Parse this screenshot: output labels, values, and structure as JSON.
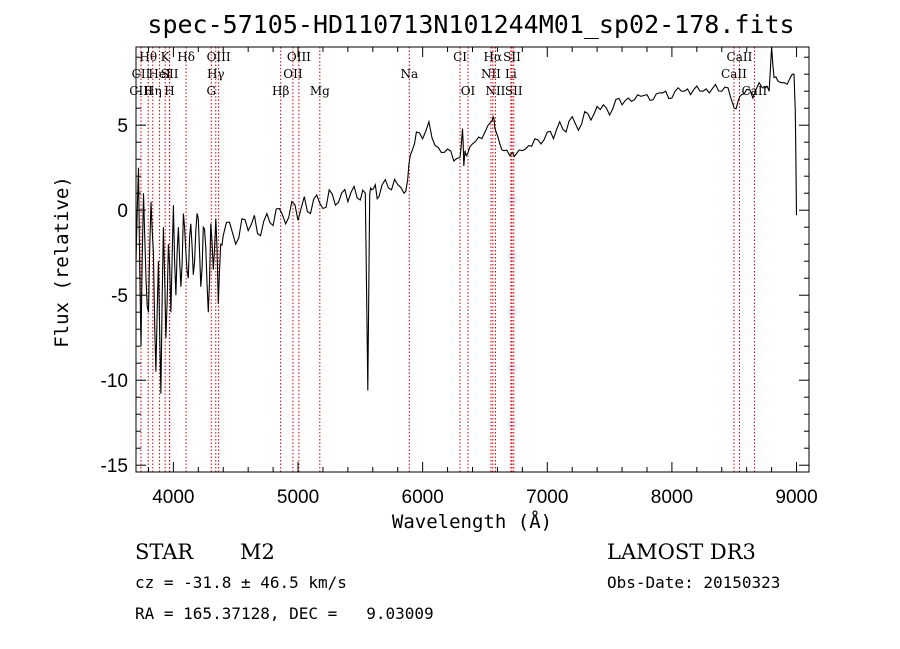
{
  "chart_data": {
    "type": "line",
    "title": "spec-57105-HD110713N101244M01_sp02-178.fits",
    "xlabel": "Wavelength (Å)",
    "ylabel": "Flux (relative)",
    "xlim": [
      3700,
      9100
    ],
    "ylim": [
      -15.4,
      9.6
    ],
    "xticks": [
      4000,
      5000,
      6000,
      7000,
      8000,
      9000
    ],
    "yticks": [
      -15,
      -10,
      -5,
      0,
      5
    ],
    "series": [
      {
        "name": "spectrum",
        "x": [
          3700,
          3720,
          3740,
          3760,
          3780,
          3800,
          3820,
          3840,
          3860,
          3880,
          3900,
          3920,
          3940,
          3960,
          3980,
          4000,
          4020,
          4040,
          4060,
          4080,
          4100,
          4120,
          4140,
          4160,
          4180,
          4200,
          4220,
          4240,
          4260,
          4280,
          4300,
          4320,
          4340,
          4360,
          4380,
          4400,
          4450,
          4500,
          4550,
          4600,
          4650,
          4700,
          4750,
          4800,
          4850,
          4900,
          4950,
          5000,
          5050,
          5100,
          5150,
          5200,
          5250,
          5300,
          5350,
          5400,
          5450,
          5500,
          5540,
          5560,
          5575,
          5590,
          5620,
          5650,
          5700,
          5750,
          5800,
          5850,
          5880,
          5900,
          5920,
          5950,
          6000,
          6050,
          6100,
          6150,
          6200,
          6250,
          6300,
          6320,
          6330,
          6340,
          6360,
          6400,
          6450,
          6500,
          6550,
          6565,
          6580,
          6620,
          6650,
          6700,
          6720,
          6750,
          6800,
          6850,
          6900,
          6950,
          7000,
          7050,
          7100,
          7150,
          7200,
          7250,
          7300,
          7350,
          7400,
          7450,
          7500,
          7550,
          7600,
          7650,
          7700,
          7750,
          7800,
          7850,
          7900,
          7950,
          8000,
          8050,
          8100,
          8150,
          8200,
          8250,
          8300,
          8350,
          8400,
          8450,
          8500,
          8530,
          8560,
          8600,
          8650,
          8700,
          8750,
          8780,
          8800,
          8820,
          8850,
          8900,
          8950,
          8980,
          8990,
          9000
        ],
        "y": [
          -3.0,
          2.5,
          -8.0,
          1.0,
          -4.0,
          -6.0,
          0.5,
          -2.5,
          -9.5,
          -3.0,
          -10.8,
          -1.0,
          -7.5,
          -2.0,
          -6.0,
          0.3,
          -5.0,
          -1.0,
          -4.5,
          -0.2,
          -2.5,
          -4.0,
          -0.8,
          -3.8,
          -1.2,
          -0.5,
          -4.5,
          -1.0,
          -2.2,
          -6.0,
          -0.8,
          -3.5,
          -0.5,
          -5.5,
          -2.0,
          -1.5,
          -0.7,
          -2.0,
          -0.5,
          -1.2,
          -0.3,
          -1.5,
          -0.2,
          -0.9,
          0.1,
          -0.8,
          0.5,
          -0.6,
          0.8,
          -0.2,
          0.9,
          0.1,
          1.2,
          0.3,
          1.0,
          0.5,
          1.4,
          0.6,
          1.0,
          -10.6,
          0.9,
          1.2,
          1.5,
          0.8,
          1.8,
          1.2,
          1.5,
          1.0,
          1.8,
          3.2,
          3.6,
          4.6,
          4.2,
          5.2,
          3.8,
          3.4,
          3.6,
          2.9,
          3.1,
          4.8,
          2.6,
          3.5,
          3.3,
          3.9,
          4.3,
          4.6,
          5.2,
          5.5,
          4.8,
          3.9,
          3.5,
          3.2,
          3.4,
          3.3,
          3.5,
          3.8,
          4.2,
          3.9,
          4.6,
          4.2,
          5.2,
          4.6,
          5.5,
          4.7,
          5.8,
          5.3,
          6.1,
          6.2,
          5.6,
          6.5,
          6.2,
          6.6,
          6.5,
          6.7,
          6.8,
          6.5,
          6.9,
          7.0,
          6.6,
          7.2,
          7.0,
          6.8,
          7.3,
          7.0,
          6.9,
          7.4,
          7.0,
          7.2,
          6.0,
          6.4,
          6.8,
          7.1,
          6.6,
          7.5,
          7.2,
          7.0,
          9.6,
          7.8,
          7.6,
          7.5,
          7.8,
          8.0,
          5.8,
          -0.3
        ]
      }
    ],
    "spectral_lines": [
      {
        "label": "Hθ",
        "x": 3798,
        "row": 0
      },
      {
        "label": "CII",
        "x": 3740,
        "row": 1
      },
      {
        "label": "CIII",
        "x": 3740,
        "row": 2
      },
      {
        "label": "K",
        "x": 3934,
        "row": 0
      },
      {
        "label": "HeI",
        "x": 3889,
        "row": 1
      },
      {
        "label": "Hη",
        "x": 3835,
        "row": 2
      },
      {
        "label": "SII",
        "x": 3970,
        "row": 1
      },
      {
        "label": "H",
        "x": 3969,
        "row": 2
      },
      {
        "label": "Hδ",
        "x": 4102,
        "row": 0
      },
      {
        "label": "OIII",
        "x": 4363,
        "row": 0
      },
      {
        "label": "Hγ",
        "x": 4340,
        "row": 1
      },
      {
        "label": "G",
        "x": 4304,
        "row": 2
      },
      {
        "label": "Hβ",
        "x": 4861,
        "row": 2
      },
      {
        "label": "OIII",
        "x": 5007,
        "row": 0
      },
      {
        "label": "OII",
        "x": 4959,
        "row": 1
      },
      {
        "label": "Mg",
        "x": 5175,
        "row": 2
      },
      {
        "label": "Na",
        "x": 5893,
        "row": 1
      },
      {
        "label": "CI",
        "x": 6300,
        "row": 0
      },
      {
        "label": "OI",
        "x": 6364,
        "row": 2
      },
      {
        "label": "Hα",
        "x": 6563,
        "row": 0
      },
      {
        "label": "SII",
        "x": 6717,
        "row": 0
      },
      {
        "label": "NII",
        "x": 6548,
        "row": 1
      },
      {
        "label": "Li",
        "x": 6708,
        "row": 1
      },
      {
        "label": "NII",
        "x": 6584,
        "row": 2
      },
      {
        "label": "SII",
        "x": 6731,
        "row": 2
      },
      {
        "label": "CaII",
        "x": 8542,
        "row": 0
      },
      {
        "label": "CaII",
        "x": 8498,
        "row": 1
      },
      {
        "label": "CaII",
        "x": 8662,
        "row": 2
      }
    ],
    "colors": {
      "spectrum": "#000000",
      "lines": "#cc0000",
      "axes": "#000000"
    }
  },
  "info": {
    "object_class": "STAR",
    "subclass": "M2",
    "survey": "LAMOST DR3",
    "cz": "cz = -31.8 ± 46.5 km/s",
    "obs_date": "Obs-Date: 20150323",
    "coords": "RA = 165.37128, DEC =   9.03009"
  }
}
